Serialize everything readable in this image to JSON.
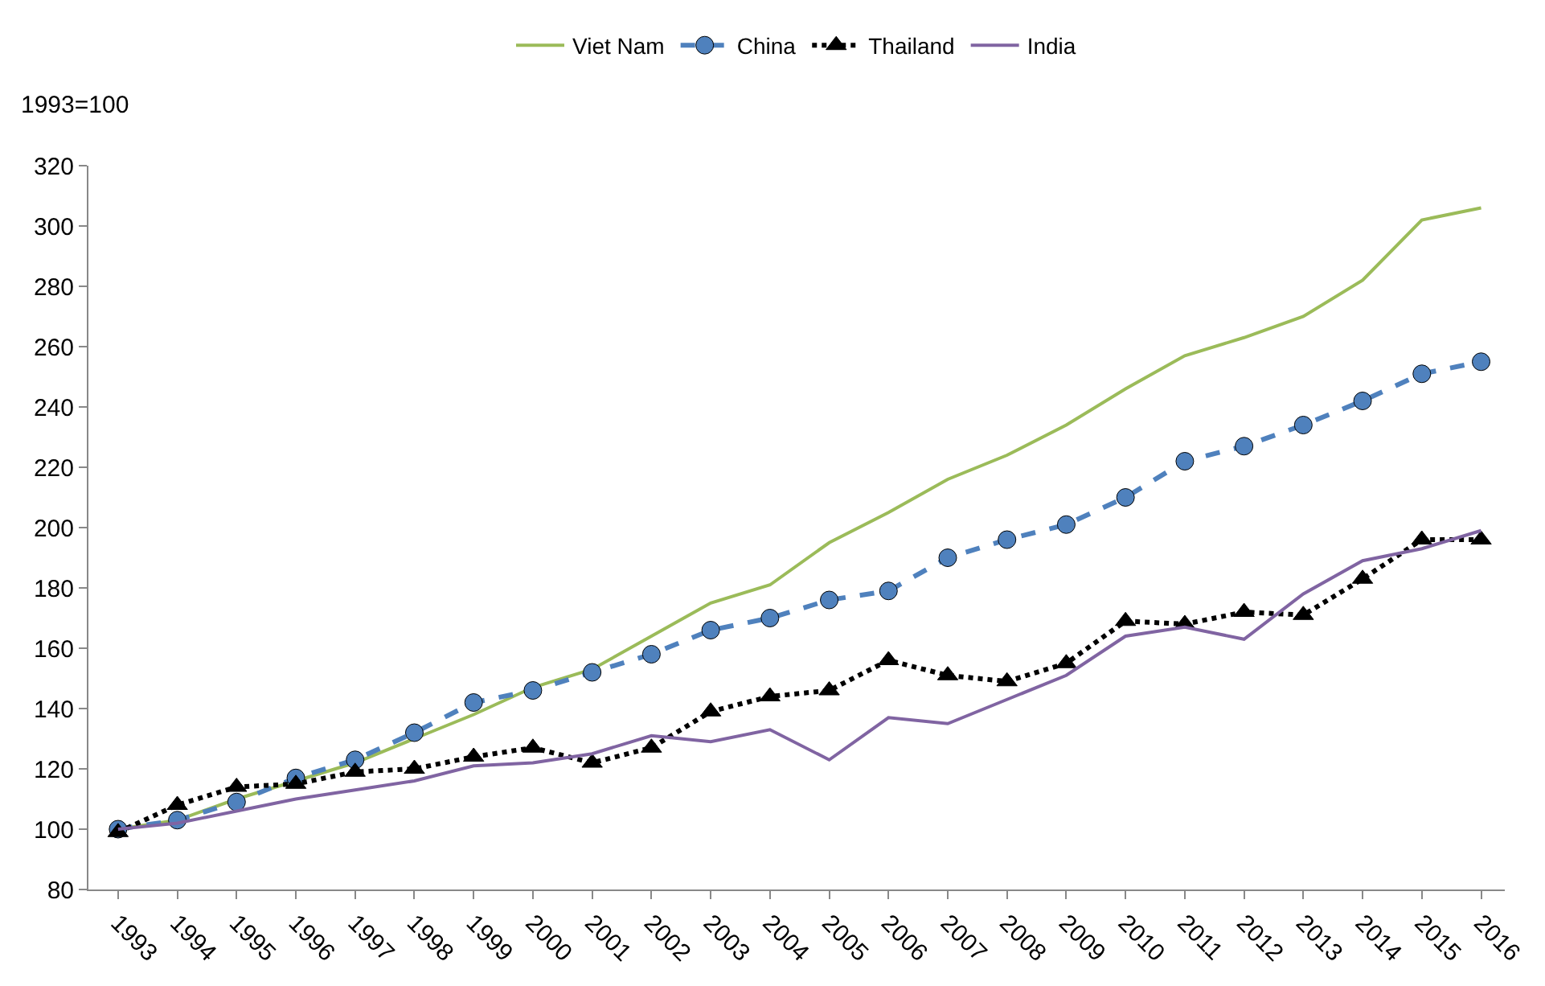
{
  "chart_data": {
    "type": "line",
    "ylabel": "1993=100",
    "categories": [
      "1993",
      "1994",
      "1995",
      "1996",
      "1997",
      "1998",
      "1999",
      "2000",
      "2001",
      "2002",
      "2003",
      "2004",
      "2005",
      "2006",
      "2007",
      "2008",
      "2009",
      "2010",
      "2011",
      "2012",
      "2013",
      "2014",
      "2015",
      "2016"
    ],
    "series": [
      {
        "name": "Viet Nam",
        "color": "#9bbb59",
        "marker": "none",
        "line_style": "solid",
        "values": [
          100,
          103,
          110,
          116,
          122,
          130,
          138,
          147,
          153,
          164,
          175,
          181,
          195,
          205,
          216,
          224,
          234,
          246,
          257,
          263,
          270,
          282,
          302,
          306
        ]
      },
      {
        "name": "China",
        "color": "#4f81bd",
        "marker": "circle",
        "line_style": "dashed",
        "values": [
          100,
          103,
          109,
          117,
          123,
          132,
          142,
          146,
          152,
          158,
          166,
          170,
          176,
          179,
          190,
          196,
          201,
          210,
          222,
          227,
          234,
          242,
          251,
          255
        ]
      },
      {
        "name": "Thailand",
        "color": "#000000",
        "marker": "triangle",
        "line_style": "dotted",
        "values": [
          99,
          108,
          114,
          115,
          119,
          120,
          124,
          127,
          122,
          127,
          139,
          144,
          146,
          156,
          151,
          149,
          155,
          169,
          168,
          172,
          171,
          183,
          196,
          196
        ]
      },
      {
        "name": "India",
        "color": "#8064a2",
        "marker": "none",
        "line_style": "solid",
        "values": [
          100,
          102,
          106,
          110,
          113,
          116,
          121,
          122,
          125,
          131,
          129,
          133,
          123,
          137,
          135,
          143,
          151,
          164,
          167,
          163,
          178,
          189,
          193,
          199
        ]
      }
    ],
    "ylim": [
      80,
      320
    ],
    "yticks": [
      80,
      100,
      120,
      140,
      160,
      180,
      200,
      220,
      240,
      260,
      280,
      300,
      320
    ],
    "grid": false,
    "legend": "top"
  }
}
